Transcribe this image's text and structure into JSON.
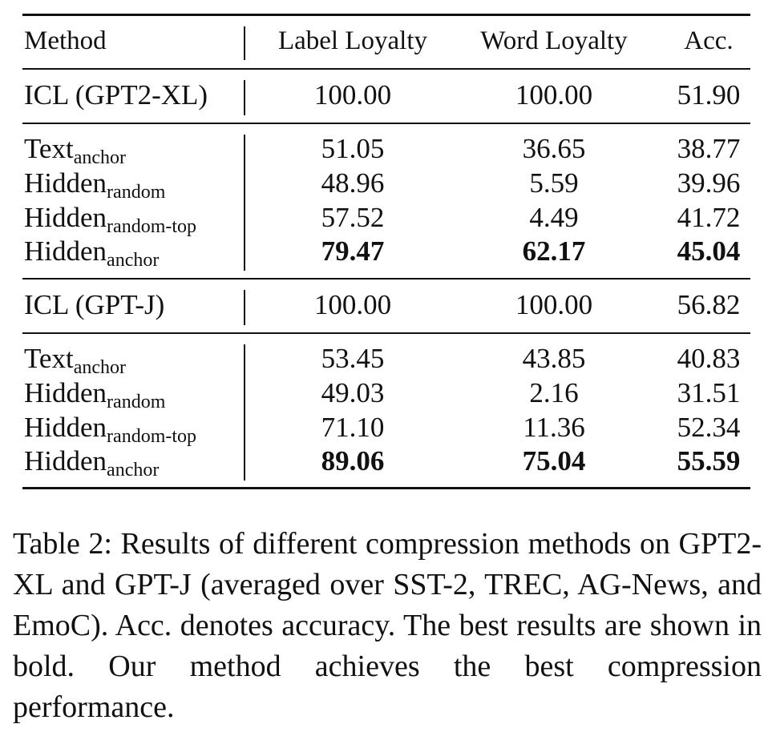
{
  "table": {
    "headers": [
      "Method",
      "Label Loyalty",
      "Word Loyalty",
      "Acc."
    ],
    "rows": [
      {
        "method": "ICL (GPT2-XL)",
        "sub": "",
        "label": "100.00",
        "word": "100.00",
        "acc": "51.90"
      },
      {
        "method": "Text",
        "sub": "anchor",
        "label": "51.05",
        "word": "36.65",
        "acc": "38.77"
      },
      {
        "method": "Hidden",
        "sub": "random",
        "label": "48.96",
        "word": "5.59",
        "acc": "39.96"
      },
      {
        "method": "Hidden",
        "sub": "random-top",
        "label": "57.52",
        "word": "4.49",
        "acc": "41.72"
      },
      {
        "method": "Hidden",
        "sub": "anchor",
        "label": "79.47",
        "word": "62.17",
        "acc": "45.04"
      },
      {
        "method": "ICL (GPT-J)",
        "sub": "",
        "label": "100.00",
        "word": "100.00",
        "acc": "56.82"
      },
      {
        "method": "Text",
        "sub": "anchor",
        "label": "53.45",
        "word": "43.85",
        "acc": "40.83"
      },
      {
        "method": "Hidden",
        "sub": "random",
        "label": "49.03",
        "word": "2.16",
        "acc": "31.51"
      },
      {
        "method": "Hidden",
        "sub": "random-top",
        "label": "71.10",
        "word": "11.36",
        "acc": "52.34"
      },
      {
        "method": "Hidden",
        "sub": "anchor",
        "label": "89.06",
        "word": "75.04",
        "acc": "55.59"
      }
    ]
  },
  "caption": "Table 2: Results of different compression methods on GPT2-XL and GPT-J (averaged over SST-2, TREC, AG-News, and EmoC). Acc. denotes accuracy. The best results are shown in bold. Our method achieves the best compression performance."
}
